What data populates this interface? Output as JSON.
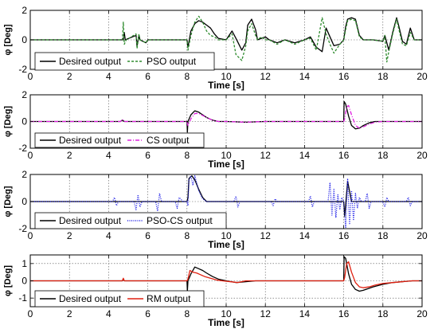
{
  "chart_data": [
    {
      "type": "line",
      "xlabel": "Time [s]",
      "ylabel": "φ [Deg]",
      "xlim": [
        0,
        20
      ],
      "ylim": [
        -2,
        2
      ],
      "x_ticks": [
        0,
        2,
        4,
        6,
        8,
        10,
        12,
        14,
        16,
        18,
        20
      ],
      "y_ticks": [
        -2,
        0,
        2
      ],
      "grid": true,
      "legend_position": "bottom-left",
      "series": [
        {
          "name": "Desired output",
          "style": "solid",
          "color": "#000000",
          "x": [
            0,
            4.75,
            4.8,
            4.85,
            5.4,
            5.45,
            5.55,
            5.6,
            5.9,
            6.0,
            6.1,
            8.0,
            8.05,
            8.2,
            8.4,
            8.6,
            8.8,
            9.0,
            9.2,
            9.4,
            9.6,
            10.0,
            10.3,
            10.5,
            10.8,
            11.0,
            11.1,
            11.3,
            11.5,
            11.6,
            11.8,
            12.0,
            12.2,
            12.6,
            13.0,
            13.5,
            14.0,
            14.3,
            14.6,
            14.9,
            15.1,
            15.3,
            15.5,
            15.8,
            16.0,
            16.1,
            16.2,
            16.4,
            16.6,
            16.8,
            17.0,
            17.5,
            18.0,
            18.1,
            18.3,
            18.5,
            18.7,
            18.8,
            19.0,
            19.2,
            19.4,
            19.6,
            20.0
          ],
          "y": [
            0,
            0,
            0.5,
            0,
            0.3,
            -0.4,
            0.3,
            0,
            -0.2,
            0,
            0,
            0,
            -0.5,
            0.6,
            1.1,
            1.3,
            1.2,
            1.0,
            0.8,
            0.4,
            0.1,
            0,
            0.6,
            0.1,
            -0.7,
            -0.2,
            1.0,
            1.4,
            0.7,
            0,
            0.1,
            0.2,
            0,
            -0.2,
            0,
            -0.2,
            0,
            0.2,
            -0.5,
            -0.8,
            0.8,
            0.2,
            -0.4,
            -0.3,
            0,
            0.9,
            1.4,
            1.5,
            1.4,
            0.3,
            0,
            0,
            -0.1,
            0.3,
            -0.7,
            0.5,
            1.5,
            1.0,
            -0.1,
            -0.3,
            0.8,
            0,
            0
          ]
        },
        {
          "name": "PSO output",
          "style": "dashed",
          "color": "#2e8b2e",
          "x": [
            0,
            4.7,
            4.75,
            4.8,
            4.9,
            5.4,
            5.45,
            5.55,
            5.6,
            5.9,
            6.0,
            6.1,
            8.0,
            8.05,
            8.2,
            8.4,
            8.6,
            8.8,
            9.0,
            9.2,
            9.4,
            9.6,
            10.0,
            10.3,
            10.5,
            10.8,
            11.0,
            11.1,
            11.3,
            11.5,
            11.6,
            11.8,
            12.0,
            12.2,
            12.6,
            13.0,
            13.5,
            14.0,
            14.3,
            14.6,
            14.9,
            15.1,
            15.3,
            15.5,
            15.8,
            16.0,
            16.1,
            16.2,
            16.4,
            16.6,
            16.8,
            17.0,
            17.5,
            18.0,
            18.1,
            18.2,
            18.3,
            18.5,
            18.7,
            18.8,
            19.0,
            19.2,
            19.4,
            19.6,
            20.0
          ],
          "y": [
            0,
            0,
            1.2,
            -0.3,
            0,
            0.4,
            -0.6,
            0.4,
            0,
            -0.2,
            0,
            0,
            0,
            -0.7,
            0.3,
            1.2,
            1.6,
            1.2,
            0.6,
            0.3,
            0.2,
            0,
            0,
            0.4,
            -1.0,
            -1.4,
            -0.4,
            0.6,
            1.1,
            0.3,
            0,
            0.2,
            0,
            0,
            -0.3,
            0,
            -0.3,
            0,
            0.1,
            -0.7,
            1.5,
            0.4,
            -0.3,
            -0.9,
            -0.3,
            0,
            0.7,
            1.3,
            1.4,
            1.3,
            0.2,
            0,
            0,
            -0.1,
            0.3,
            -1.5,
            -0.8,
            0.4,
            1.4,
            0.8,
            -0.3,
            -0.4,
            0.5,
            0,
            0
          ]
        }
      ]
    },
    {
      "type": "line",
      "xlabel": "Time [s]",
      "ylabel": "φ [Deg]",
      "xlim": [
        0,
        20
      ],
      "ylim": [
        -2,
        2
      ],
      "x_ticks": [
        0,
        2,
        4,
        6,
        8,
        10,
        12,
        14,
        16,
        18,
        20
      ],
      "y_ticks": [
        -2,
        0,
        2
      ],
      "grid": true,
      "legend_position": "bottom-left",
      "series": [
        {
          "name": "Desired output",
          "style": "solid",
          "color": "#000000",
          "x": [
            0,
            4.6,
            4.7,
            4.8,
            8.0,
            8.02,
            8.05,
            8.2,
            8.4,
            8.6,
            8.8,
            9.0,
            9.3,
            9.6,
            10.0,
            11.0,
            12.0,
            16.0,
            16.02,
            16.1,
            16.25,
            16.4,
            16.6,
            16.8,
            17.0,
            17.3,
            17.6,
            18.0,
            20.0
          ],
          "y": [
            0,
            0,
            0.1,
            0,
            0,
            -0.8,
            0,
            0.5,
            0.8,
            0.7,
            0.5,
            0.3,
            0.1,
            0,
            0,
            -0.05,
            0,
            0,
            1.5,
            1.3,
            0.4,
            -0.3,
            -0.55,
            -0.5,
            -0.3,
            -0.1,
            0,
            0,
            0
          ]
        },
        {
          "name": "CS output",
          "style": "dashdot",
          "color": "#e020e0",
          "x": [
            0,
            4.6,
            4.7,
            4.8,
            8.0,
            8.05,
            8.2,
            8.4,
            8.6,
            8.8,
            9.0,
            9.3,
            9.6,
            10.0,
            11.0,
            12.0,
            16.0,
            16.05,
            16.15,
            16.25,
            16.4,
            16.6,
            16.8,
            17.0,
            17.3,
            17.6,
            18.0,
            20.0
          ],
          "y": [
            0,
            0,
            0.15,
            0,
            0,
            -0.3,
            0.2,
            0.6,
            0.6,
            0.45,
            0.3,
            0.1,
            0,
            0,
            -0.05,
            0,
            0,
            0.2,
            1.1,
            1.2,
            0.5,
            -0.3,
            -0.5,
            -0.4,
            -0.2,
            -0.05,
            0,
            0
          ]
        }
      ]
    },
    {
      "type": "line",
      "xlabel": "Time [s]",
      "ylabel": "φ [Deg]",
      "xlim": [
        0,
        20
      ],
      "ylim": [
        -2,
        2
      ],
      "x_ticks": [
        0,
        2,
        4,
        6,
        8,
        10,
        12,
        14,
        16,
        18,
        20
      ],
      "y_ticks": [
        -2,
        0,
        2
      ],
      "grid": true,
      "legend_position": "bottom-left",
      "series": [
        {
          "name": "Desired output",
          "style": "solid",
          "color": "#000000",
          "x": [
            0,
            8.0,
            8.05,
            8.1,
            8.25,
            8.4,
            8.6,
            8.8,
            9.0,
            16.0,
            16.05,
            16.2,
            16.4,
            20.0
          ],
          "y": [
            0,
            0,
            0.3,
            1.7,
            1.9,
            1.6,
            0.9,
            0.3,
            0,
            0,
            -1.1,
            1.5,
            0,
            0
          ]
        },
        {
          "name": "PSO-CS output",
          "style": "dotted",
          "color": "#1a1ae6",
          "x": [
            0,
            4.2,
            4.3,
            4.4,
            4.5,
            5.3,
            5.4,
            5.5,
            5.6,
            5.7,
            6.4,
            6.5,
            6.6,
            6.7,
            7.4,
            7.5,
            7.6,
            7.8,
            8.0,
            8.05,
            8.1,
            8.2,
            8.3,
            8.4,
            8.6,
            8.8,
            9.0,
            10.4,
            10.5,
            10.6,
            10.7,
            12.3,
            12.4,
            12.5,
            12.6,
            14.2,
            14.3,
            14.4,
            14.5,
            15.2,
            15.3,
            15.4,
            15.5,
            15.6,
            15.7,
            15.8,
            15.9,
            16.0,
            16.1,
            16.2,
            16.3,
            16.4,
            16.5,
            16.6,
            16.7,
            16.8,
            16.9,
            17.1,
            17.2,
            17.3,
            17.4,
            18.0,
            18.1,
            18.2,
            18.3,
            19.2,
            19.3,
            19.4,
            19.5,
            20.0
          ],
          "y": [
            0,
            0,
            0.3,
            -0.3,
            0,
            0,
            -0.6,
            0.5,
            -0.4,
            0,
            0,
            -0.7,
            0.6,
            0,
            0,
            -0.5,
            0.3,
            0,
            0,
            -0.3,
            1.6,
            1.9,
            1.2,
            1.9,
            0.8,
            0.2,
            0,
            0,
            0.4,
            -0.4,
            0,
            0,
            -0.3,
            0.2,
            0,
            0,
            0.4,
            -0.4,
            0,
            0,
            1.4,
            -1.0,
            0.9,
            -1.2,
            0.5,
            -0.6,
            0.3,
            0,
            -1.9,
            1.7,
            -1.7,
            0.8,
            -1.4,
            0.6,
            -0.5,
            0.3,
            0,
            0,
            0.6,
            -0.5,
            0,
            0,
            -0.4,
            0.3,
            0,
            0,
            0.3,
            -0.3,
            0,
            0
          ]
        }
      ]
    },
    {
      "type": "line",
      "xlabel": "Time [s]",
      "ylabel": "φ [Deg]",
      "xlim": [
        0,
        20
      ],
      "ylim": [
        -1.5,
        1.5
      ],
      "x_ticks": [
        0,
        2,
        4,
        6,
        8,
        10,
        12,
        14,
        16,
        18,
        20
      ],
      "y_ticks": [
        -1,
        0,
        1
      ],
      "grid": true,
      "legend_position": "bottom-left",
      "series": [
        {
          "name": "Desired output",
          "style": "solid",
          "color": "#000000",
          "x": [
            0,
            4.7,
            4.75,
            4.8,
            8.0,
            8.02,
            8.05,
            8.2,
            8.4,
            8.6,
            8.8,
            9.0,
            9.3,
            9.6,
            10.0,
            10.5,
            11.0,
            11.5,
            12.0,
            16.0,
            16.02,
            16.1,
            16.25,
            16.4,
            16.6,
            16.8,
            17.0,
            17.5,
            18.0,
            18.5,
            19.0,
            19.5,
            20.0
          ],
          "y": [
            0,
            0,
            0.1,
            0,
            0,
            -0.6,
            0,
            0.4,
            0.8,
            0.7,
            0.6,
            0.45,
            0.25,
            0.1,
            0,
            -0.1,
            -0.05,
            0,
            0,
            0,
            1.4,
            1.3,
            0.4,
            -0.2,
            -0.5,
            -0.6,
            -0.55,
            -0.35,
            -0.2,
            -0.1,
            -0.05,
            0,
            0
          ]
        },
        {
          "name": "RM output",
          "style": "solid",
          "color": "#e02010",
          "x": [
            0,
            4.7,
            4.75,
            4.8,
            8.0,
            8.05,
            8.15,
            8.3,
            8.5,
            8.7,
            8.9,
            9.2,
            9.5,
            9.8,
            10.2,
            10.6,
            11.0,
            12.0,
            16.0,
            16.05,
            16.15,
            16.25,
            16.4,
            16.6,
            16.8,
            17.0,
            17.3,
            17.6,
            18.0,
            18.5,
            19.0,
            19.5,
            20.0
          ],
          "y": [
            0,
            0,
            0.15,
            0,
            0,
            0.1,
            0.6,
            0.5,
            0.45,
            0.35,
            0.25,
            0.15,
            0.05,
            0,
            -0.05,
            -0.1,
            0,
            0,
            0,
            0.2,
            1.0,
            1.1,
            0.5,
            -0.1,
            -0.35,
            -0.4,
            -0.35,
            -0.25,
            -0.15,
            -0.1,
            -0.05,
            0,
            0
          ]
        }
      ]
    }
  ]
}
